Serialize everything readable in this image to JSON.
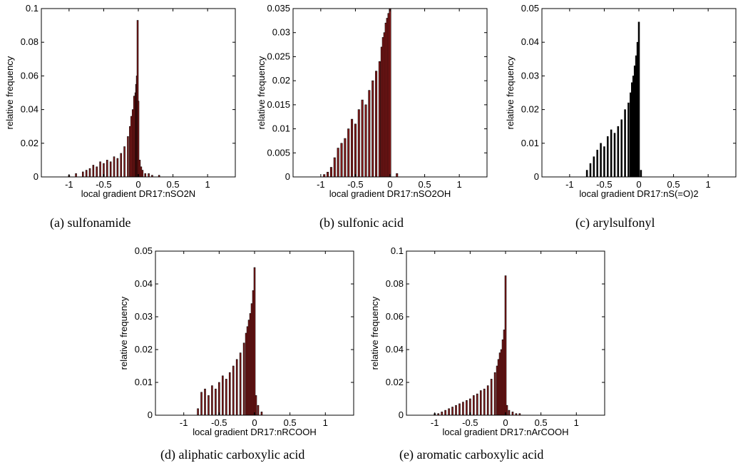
{
  "chart_data": [
    {
      "type": "bar",
      "caption": "(a)  sulfonamide",
      "xlabel": "local gradient DR17:nSO2N",
      "ylabel": "relative frequency",
      "xlim": [
        -1.4,
        1.4
      ],
      "ylim": [
        0,
        0.1
      ],
      "xticks": [
        "-1",
        "-0.5",
        "0",
        "0.5",
        "1"
      ],
      "xtick_values": [
        -1,
        -0.5,
        0,
        0.5,
        1
      ],
      "yticks": [
        "0",
        "0.02",
        "0.04",
        "0.06",
        "0.08",
        "0.1"
      ],
      "ytick_values": [
        0,
        0.02,
        0.04,
        0.06,
        0.08,
        0.1
      ],
      "bin_width": 0.02,
      "x": [
        -1.0,
        -0.9,
        -0.8,
        -0.75,
        -0.7,
        -0.65,
        -0.6,
        -0.55,
        -0.5,
        -0.45,
        -0.4,
        -0.35,
        -0.3,
        -0.25,
        -0.2,
        -0.15,
        -0.12,
        -0.1,
        -0.08,
        -0.06,
        -0.04,
        -0.03,
        -0.02,
        -0.01,
        0.0,
        0.02,
        0.04,
        0.06,
        0.1,
        0.15,
        0.2,
        0.3
      ],
      "values": [
        0.001,
        0.002,
        0.003,
        0.004,
        0.005,
        0.007,
        0.006,
        0.009,
        0.008,
        0.01,
        0.009,
        0.012,
        0.011,
        0.014,
        0.018,
        0.024,
        0.03,
        0.036,
        0.04,
        0.048,
        0.05,
        0.055,
        0.06,
        0.093,
        0.045,
        0.01,
        0.006,
        0.004,
        0.002,
        0.002,
        0.001,
        0.001
      ]
    },
    {
      "type": "bar",
      "caption": "(b)  sulfonic acid",
      "xlabel": "local gradient DR17:nSO2OH",
      "ylabel": "relative frequency",
      "xlim": [
        -1.4,
        1.4
      ],
      "ylim": [
        0,
        0.035
      ],
      "xticks": [
        "-1",
        "-0.5",
        "0",
        "0.5",
        "1"
      ],
      "xtick_values": [
        -1,
        -0.5,
        0,
        0.5,
        1
      ],
      "yticks": [
        "0",
        "0.005",
        "0.01",
        "0.015",
        "0.02",
        "0.025",
        "0.03",
        "0.035"
      ],
      "ytick_values": [
        0,
        0.005,
        0.01,
        0.015,
        0.02,
        0.025,
        0.03,
        0.035
      ],
      "bin_width": 0.025,
      "x": [
        -0.95,
        -0.9,
        -0.85,
        -0.8,
        -0.75,
        -0.7,
        -0.65,
        -0.6,
        -0.55,
        -0.5,
        -0.45,
        -0.4,
        -0.35,
        -0.3,
        -0.25,
        -0.2,
        -0.15,
        -0.12,
        -0.1,
        -0.08,
        -0.06,
        -0.04,
        -0.02,
        0.0,
        0.1
      ],
      "values": [
        0.0005,
        0.001,
        0.002,
        0.004,
        0.006,
        0.007,
        0.008,
        0.01,
        0.012,
        0.011,
        0.014,
        0.016,
        0.015,
        0.018,
        0.02,
        0.022,
        0.024,
        0.027,
        0.029,
        0.03,
        0.032,
        0.033,
        0.034,
        0.035,
        0.0007
      ]
    },
    {
      "type": "bar",
      "caption": "(c)  arylsulfonyl",
      "xlabel": "local gradient DR17:nS(=O)2",
      "ylabel": "relative frequency",
      "xlim": [
        -1.4,
        1.4
      ],
      "ylim": [
        0,
        0.05
      ],
      "xticks": [
        "-1",
        "-0.5",
        "0",
        "0.5",
        "1"
      ],
      "xtick_values": [
        -1,
        -0.5,
        0,
        0.5,
        1
      ],
      "yticks": [
        "0",
        "0.01",
        "0.02",
        "0.03",
        "0.04",
        "0.05"
      ],
      "ytick_values": [
        0,
        0.01,
        0.02,
        0.03,
        0.04,
        0.05
      ],
      "bin_width": 0.02,
      "x": [
        -0.75,
        -0.7,
        -0.65,
        -0.6,
        -0.55,
        -0.5,
        -0.45,
        -0.4,
        -0.35,
        -0.3,
        -0.25,
        -0.2,
        -0.15,
        -0.12,
        -0.1,
        -0.08,
        -0.06,
        -0.04,
        -0.02,
        0.0,
        0.03
      ],
      "values": [
        0.002,
        0.004,
        0.006,
        0.008,
        0.01,
        0.009,
        0.012,
        0.014,
        0.013,
        0.015,
        0.017,
        0.02,
        0.022,
        0.025,
        0.028,
        0.03,
        0.033,
        0.036,
        0.04,
        0.046,
        0.002
      ]
    },
    {
      "type": "bar",
      "caption": "(d)  aliphatic carboxylic acid",
      "xlabel": "local gradient DR17:nRCOOH",
      "ylabel": "relative frequency",
      "xlim": [
        -1.4,
        1.4
      ],
      "ylim": [
        0,
        0.05
      ],
      "xticks": [
        "-1",
        "-0.5",
        "0",
        "0.5",
        "1"
      ],
      "xtick_values": [
        -1,
        -0.5,
        0,
        0.5,
        1
      ],
      "yticks": [
        "0",
        "0.01",
        "0.02",
        "0.03",
        "0.04",
        "0.05"
      ],
      "ytick_values": [
        0,
        0.01,
        0.02,
        0.03,
        0.04,
        0.05
      ],
      "bin_width": 0.02,
      "x": [
        -0.8,
        -0.75,
        -0.7,
        -0.65,
        -0.6,
        -0.55,
        -0.5,
        -0.45,
        -0.4,
        -0.35,
        -0.3,
        -0.25,
        -0.2,
        -0.15,
        -0.12,
        -0.1,
        -0.08,
        -0.06,
        -0.04,
        -0.02,
        0.0,
        0.02,
        0.05,
        0.1
      ],
      "values": [
        0.002,
        0.007,
        0.008,
        0.006,
        0.009,
        0.008,
        0.01,
        0.012,
        0.011,
        0.013,
        0.015,
        0.017,
        0.019,
        0.022,
        0.025,
        0.027,
        0.029,
        0.031,
        0.034,
        0.038,
        0.045,
        0.006,
        0.003,
        0.001
      ]
    },
    {
      "type": "bar",
      "caption": "(e)  aromatic carboxylic acid",
      "xlabel": "local gradient DR17:nArCOOH",
      "ylabel": "relative frequency",
      "xlim": [
        -1.4,
        1.4
      ],
      "ylim": [
        0,
        0.1
      ],
      "xticks": [
        "-1",
        "-0.5",
        "0",
        "0.5",
        "1"
      ],
      "xtick_values": [
        -1,
        -0.5,
        0,
        0.5,
        1
      ],
      "yticks": [
        "0",
        "0.02",
        "0.04",
        "0.06",
        "0.08",
        "0.1"
      ],
      "ytick_values": [
        0,
        0.02,
        0.04,
        0.06,
        0.08,
        0.1
      ],
      "bin_width": 0.02,
      "x": [
        -1.0,
        -0.95,
        -0.9,
        -0.85,
        -0.8,
        -0.75,
        -0.7,
        -0.65,
        -0.6,
        -0.55,
        -0.5,
        -0.45,
        -0.4,
        -0.35,
        -0.3,
        -0.25,
        -0.2,
        -0.15,
        -0.12,
        -0.1,
        -0.08,
        -0.06,
        -0.04,
        -0.02,
        0.0,
        0.02,
        0.05,
        0.1,
        0.15,
        0.2
      ],
      "values": [
        0.001,
        0.001,
        0.002,
        0.003,
        0.004,
        0.005,
        0.006,
        0.007,
        0.008,
        0.009,
        0.01,
        0.012,
        0.013,
        0.015,
        0.016,
        0.018,
        0.022,
        0.026,
        0.03,
        0.034,
        0.038,
        0.04,
        0.046,
        0.052,
        0.085,
        0.006,
        0.003,
        0.002,
        0.001,
        0.001
      ]
    }
  ]
}
